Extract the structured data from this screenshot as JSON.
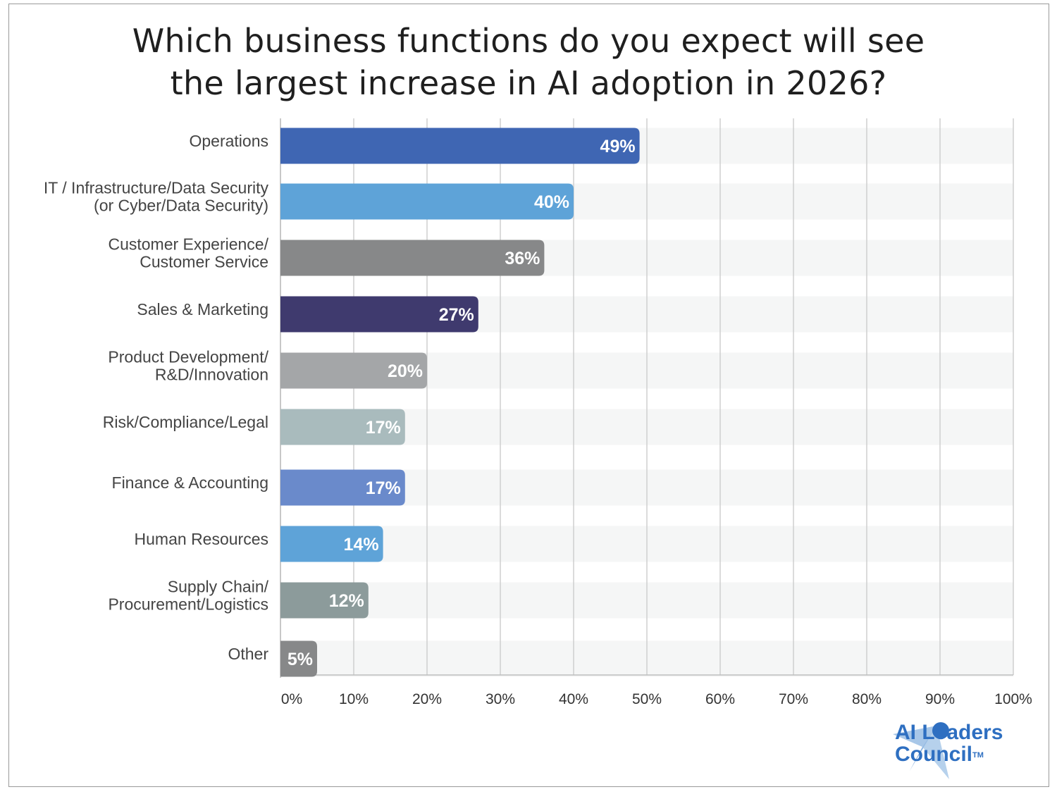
{
  "chart_data": {
    "type": "bar",
    "orientation": "horizontal",
    "title_lines": [
      "Which business functions do you expect will see",
      "the largest increase in AI adoption in 2026?"
    ],
    "categories": [
      [
        "Operations"
      ],
      [
        "IT / Infrastructure/Data Security",
        "(or Cyber/Data Security)"
      ],
      [
        "Customer Experience/",
        "Customer Service"
      ],
      [
        "Sales & Marketing"
      ],
      [
        "Product Development/",
        "R&D/Innovation"
      ],
      [
        "Risk/Compliance/Legal"
      ],
      [
        "Finance & Accounting"
      ],
      [
        "Human Resources"
      ],
      [
        "Supply Chain/",
        "Procurement/Logistics"
      ],
      [
        "Other"
      ]
    ],
    "values": [
      49,
      40,
      36,
      27,
      20,
      17,
      17,
      14,
      12,
      5
    ],
    "data_labels": [
      "49%",
      "40%",
      "36%",
      "27%",
      "20%",
      "17%",
      "17%",
      "14%",
      "12%",
      "5%"
    ],
    "bar_colors": [
      "#3f66b3",
      "#5ea3d8",
      "#878889",
      "#3f3a6e",
      "#a4a6a8",
      "#a9bbbd",
      "#6a8acb",
      "#5ea3d8",
      "#8c9b9b",
      "#878889"
    ],
    "track_color": "#f5f6f6",
    "grid_color": "#cfcfcf",
    "xlim": [
      0,
      100
    ],
    "xticks": [
      0,
      10,
      20,
      30,
      40,
      50,
      60,
      70,
      80,
      90,
      100
    ],
    "xtick_labels": [
      "0%",
      "10%",
      "20%",
      "30%",
      "40%",
      "50%",
      "60%",
      "70%",
      "80%",
      "90%",
      "100%"
    ],
    "grid": true,
    "legend": "none"
  },
  "logo": {
    "name_lines": [
      "AI Leaders",
      "Council"
    ],
    "trademark": "TM",
    "icon": "ai-leaders-council-logo-icon",
    "colors": [
      "#2e6fc1",
      "#9ec1e6"
    ]
  }
}
